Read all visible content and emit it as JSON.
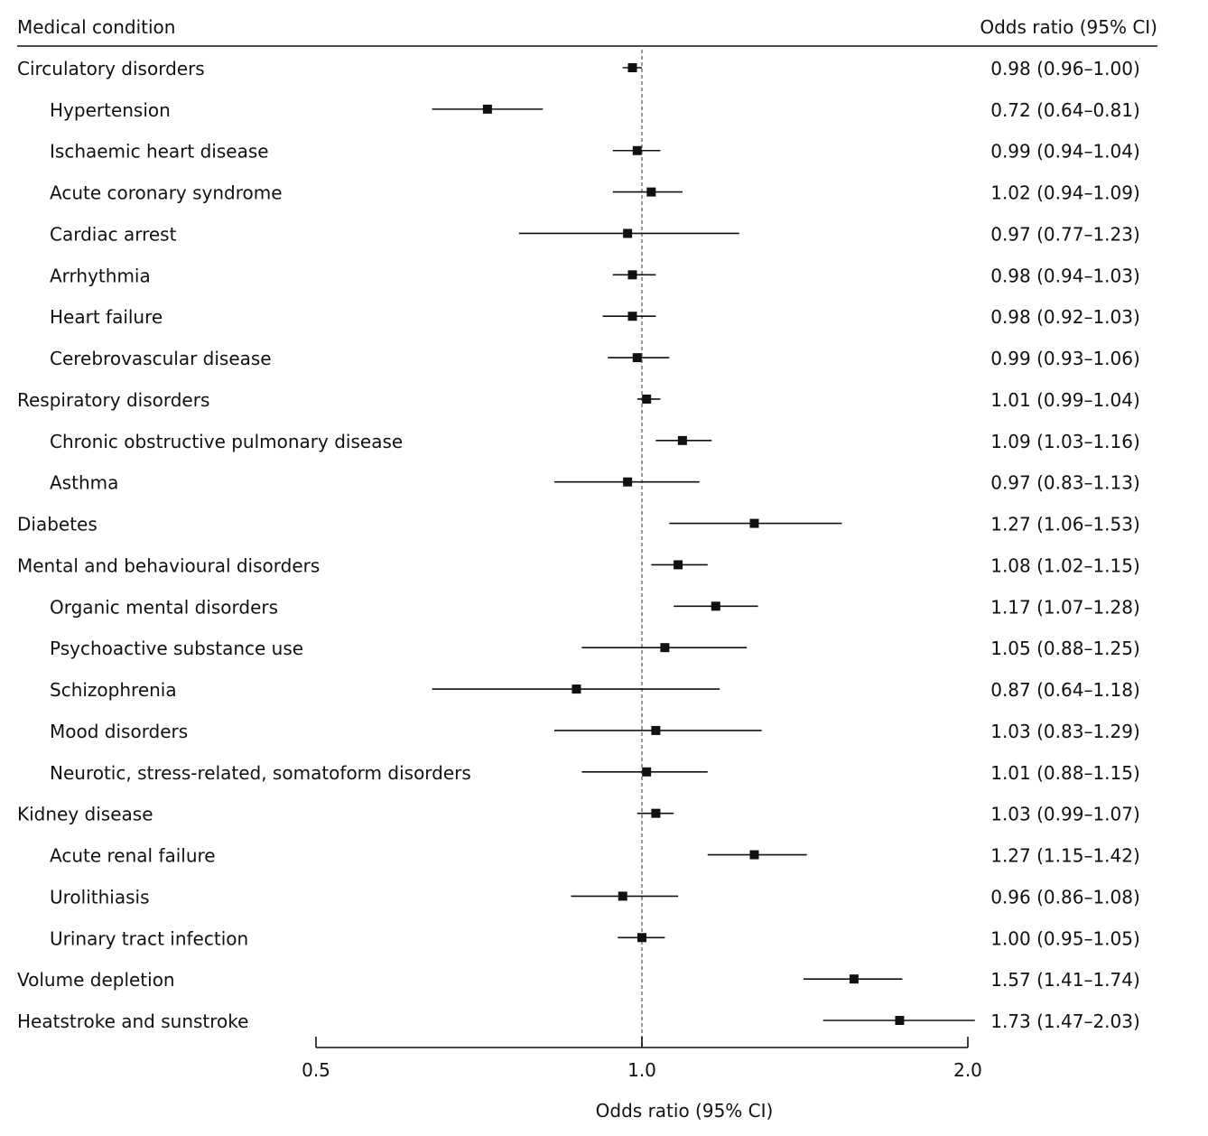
{
  "chart_data": {
    "type": "forest",
    "column_headers": {
      "left": "Medical condition",
      "right": "Odds ratio (95%  CI)"
    },
    "xlabel": "Odds ratio (95% CI)",
    "x_scale": "log",
    "xlim": [
      0.5,
      2.0
    ],
    "xticks": [
      0.5,
      1.0,
      2.0
    ],
    "xtick_labels": [
      "0.5",
      "1.0",
      "2.0"
    ],
    "reference_line": 1.0,
    "rows": [
      {
        "label": "Circulatory disorders",
        "level": 0,
        "or": 0.98,
        "lo": 0.96,
        "hi": 1.0,
        "text": "0.98 (0.96–1.00)"
      },
      {
        "label": "Hypertension",
        "level": 1,
        "or": 0.72,
        "lo": 0.64,
        "hi": 0.81,
        "text": "0.72 (0.64–0.81)"
      },
      {
        "label": "Ischaemic heart disease",
        "level": 1,
        "or": 0.99,
        "lo": 0.94,
        "hi": 1.04,
        "text": "0.99 (0.94–1.04)"
      },
      {
        "label": "Acute coronary syndrome",
        "level": 1,
        "or": 1.02,
        "lo": 0.94,
        "hi": 1.09,
        "text": "1.02 (0.94–1.09)"
      },
      {
        "label": "Cardiac arrest",
        "level": 1,
        "or": 0.97,
        "lo": 0.77,
        "hi": 1.23,
        "text": "0.97 (0.77–1.23)"
      },
      {
        "label": "Arrhythmia",
        "level": 1,
        "or": 0.98,
        "lo": 0.94,
        "hi": 1.03,
        "text": "0.98 (0.94–1.03)"
      },
      {
        "label": "Heart failure",
        "level": 1,
        "or": 0.98,
        "lo": 0.92,
        "hi": 1.03,
        "text": "0.98 (0.92–1.03)"
      },
      {
        "label": "Cerebrovascular disease",
        "level": 1,
        "or": 0.99,
        "lo": 0.93,
        "hi": 1.06,
        "text": "0.99 (0.93–1.06)"
      },
      {
        "label": "Respiratory disorders",
        "level": 0,
        "or": 1.01,
        "lo": 0.99,
        "hi": 1.04,
        "text": "1.01 (0.99–1.04)"
      },
      {
        "label": "Chronic obstructive pulmonary disease",
        "level": 1,
        "or": 1.09,
        "lo": 1.03,
        "hi": 1.16,
        "text": "1.09 (1.03–1.16)"
      },
      {
        "label": "Asthma",
        "level": 1,
        "or": 0.97,
        "lo": 0.83,
        "hi": 1.13,
        "text": "0.97 (0.83–1.13)"
      },
      {
        "label": "Diabetes",
        "level": 0,
        "or": 1.27,
        "lo": 1.06,
        "hi": 1.53,
        "text": "1.27 (1.06–1.53)"
      },
      {
        "label": "Mental and behavioural disorders",
        "level": 0,
        "or": 1.08,
        "lo": 1.02,
        "hi": 1.15,
        "text": "1.08 (1.02–1.15)"
      },
      {
        "label": "Organic mental disorders",
        "level": 1,
        "or": 1.17,
        "lo": 1.07,
        "hi": 1.28,
        "text": "1.17 (1.07–1.28)"
      },
      {
        "label": "Psychoactive substance use",
        "level": 1,
        "or": 1.05,
        "lo": 0.88,
        "hi": 1.25,
        "text": "1.05 (0.88–1.25)"
      },
      {
        "label": "Schizophrenia",
        "level": 1,
        "or": 0.87,
        "lo": 0.64,
        "hi": 1.18,
        "text": "0.87 (0.64–1.18)"
      },
      {
        "label": "Mood disorders",
        "level": 1,
        "or": 1.03,
        "lo": 0.83,
        "hi": 1.29,
        "text": "1.03 (0.83–1.29)"
      },
      {
        "label": "Neurotic, stress-related, somatoform disorders",
        "level": 1,
        "or": 1.01,
        "lo": 0.88,
        "hi": 1.15,
        "text": "1.01 (0.88–1.15)"
      },
      {
        "label": "Kidney disease",
        "level": 0,
        "or": 1.03,
        "lo": 0.99,
        "hi": 1.07,
        "text": "1.03 (0.99–1.07)"
      },
      {
        "label": "Acute renal failure",
        "level": 1,
        "or": 1.27,
        "lo": 1.15,
        "hi": 1.42,
        "text": "1.27 (1.15–1.42)"
      },
      {
        "label": "Urolithiasis",
        "level": 1,
        "or": 0.96,
        "lo": 0.86,
        "hi": 1.08,
        "text": "0.96 (0.86–1.08)"
      },
      {
        "label": "Urinary tract infection",
        "level": 1,
        "or": 1.0,
        "lo": 0.95,
        "hi": 1.05,
        "text": "1.00 (0.95–1.05)"
      },
      {
        "label": "Volume depletion",
        "level": 0,
        "or": 1.57,
        "lo": 1.41,
        "hi": 1.74,
        "text": "1.57 (1.41–1.74)"
      },
      {
        "label": "Heatstroke and sunstroke",
        "level": 0,
        "or": 1.73,
        "lo": 1.47,
        "hi": 2.03,
        "text": "1.73 (1.47–2.03)"
      }
    ],
    "colors": {
      "marker": "#111111",
      "reference_line": "#999999"
    }
  }
}
